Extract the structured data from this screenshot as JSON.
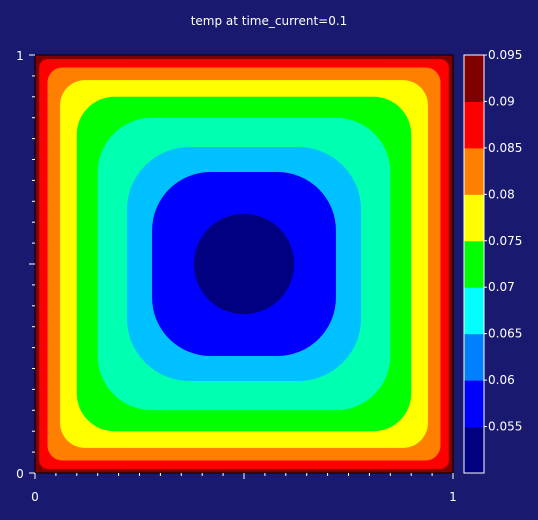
{
  "chart_data": {
    "type": "heatmap",
    "title": "temp at time_current=0.1",
    "xlabel": "",
    "ylabel": "",
    "xlim": [
      0,
      1
    ],
    "ylim": [
      0,
      1
    ],
    "x_tick_labels": [
      "0",
      "1"
    ],
    "y_tick_labels": [
      "0",
      "1"
    ],
    "field": "temp",
    "time_current": 0.1,
    "contour_levels": [
      0.05,
      0.055,
      0.06,
      0.065,
      0.07,
      0.075,
      0.08,
      0.085,
      0.09,
      0.095,
      0.1
    ],
    "colorbar_labels": [
      "0.055",
      "0.06",
      "0.065",
      "0.07",
      "0.075",
      "0.08",
      "0.085",
      "0.09",
      "0.095"
    ],
    "band_colors": [
      "#000080",
      "#0000ff",
      "#0080ff",
      "#00ffff",
      "#00ff00",
      "#ffff00",
      "#ff8000",
      "#ff0000",
      "#800000"
    ],
    "band_colors_plot": [
      "#000080",
      "#0000ff",
      "#00c0ff",
      "#00ffb0",
      "#00ff00",
      "#ffff00",
      "#ff8000",
      "#ff0000",
      "#800000"
    ],
    "contour_rings": [
      {
        "level": 0.055,
        "half_width": 0.12,
        "corner": 0.12
      },
      {
        "level": 0.06,
        "half_width": 0.22,
        "corner": 0.14
      },
      {
        "level": 0.065,
        "half_width": 0.28,
        "corner": 0.15
      },
      {
        "level": 0.07,
        "half_width": 0.35,
        "corner": 0.13
      },
      {
        "level": 0.075,
        "half_width": 0.4,
        "corner": 0.09
      },
      {
        "level": 0.08,
        "half_width": 0.44,
        "corner": 0.06
      },
      {
        "level": 0.085,
        "half_width": 0.47,
        "corner": 0.035
      },
      {
        "level": 0.09,
        "half_width": 0.49,
        "corner": 0.02
      }
    ],
    "center": [
      0.5,
      0.5
    ],
    "legend_position": "right"
  }
}
